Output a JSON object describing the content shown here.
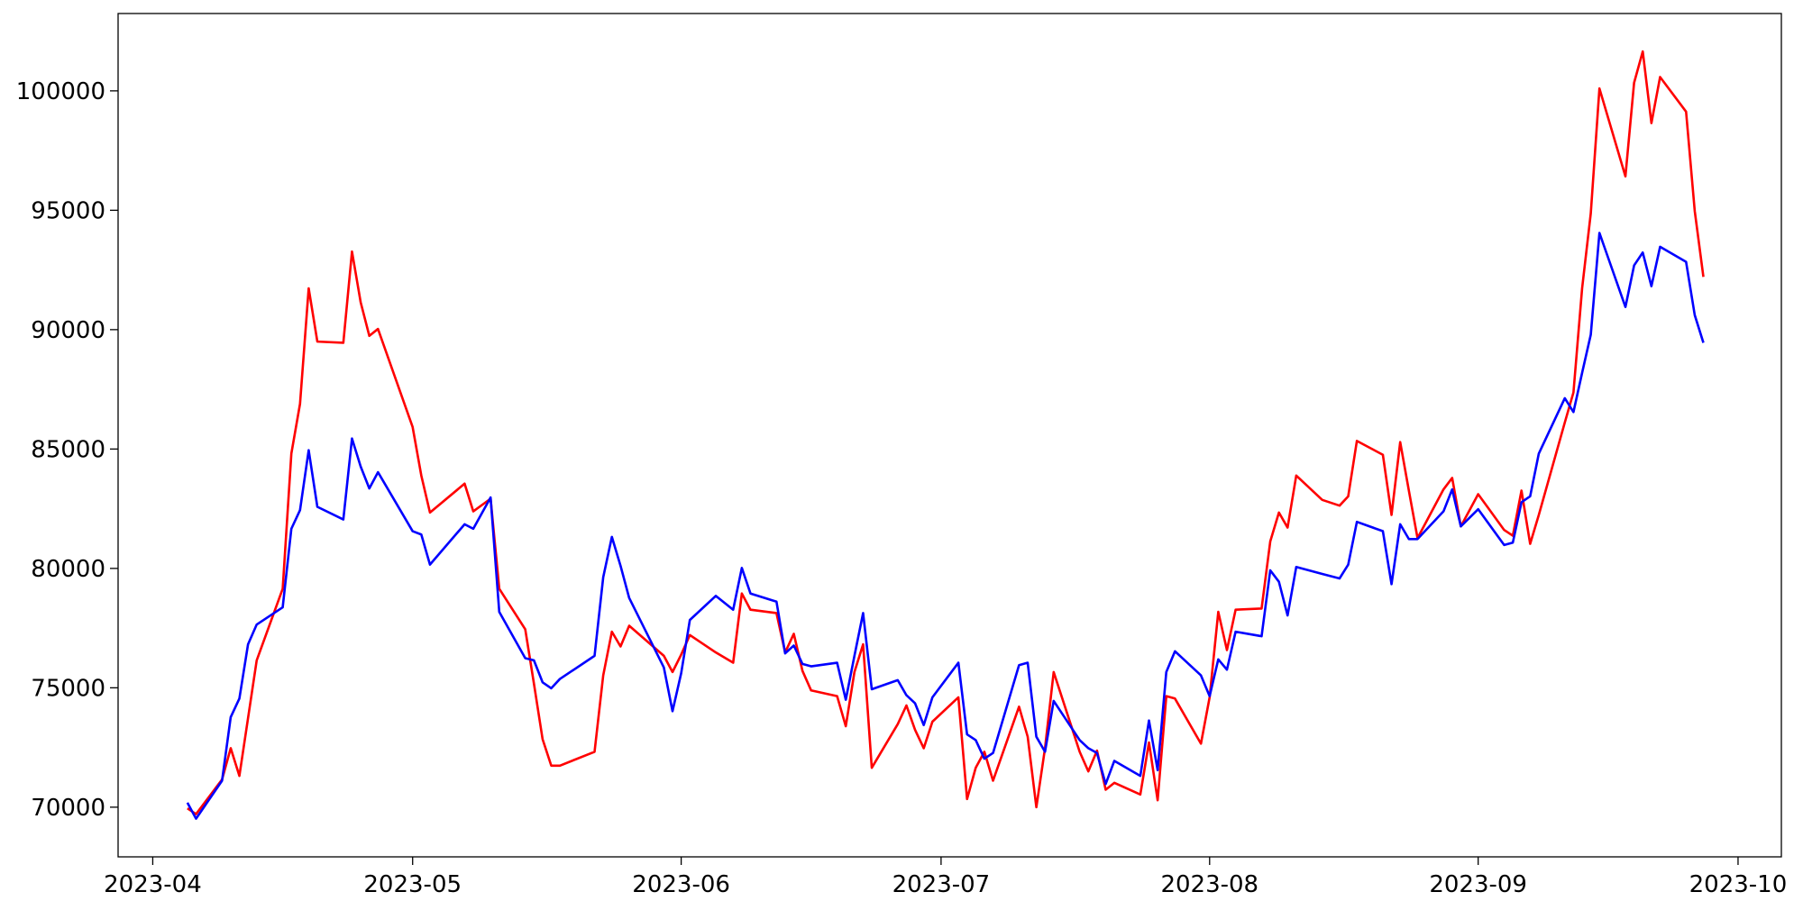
{
  "chart_data": {
    "type": "line",
    "x": [
      "2023-04-05",
      "2023-04-06",
      "2023-04-09",
      "2023-04-10",
      "2023-04-11",
      "2023-04-12",
      "2023-04-13",
      "2023-04-16",
      "2023-04-17",
      "2023-04-18",
      "2023-04-19",
      "2023-04-20",
      "2023-04-23",
      "2023-04-24",
      "2023-04-25",
      "2023-04-26",
      "2023-04-27",
      "2023-05-01",
      "2023-05-02",
      "2023-05-03",
      "2023-05-07",
      "2023-05-08",
      "2023-05-10",
      "2023-05-11",
      "2023-05-14",
      "2023-05-15",
      "2023-05-16",
      "2023-05-17",
      "2023-05-18",
      "2023-05-22",
      "2023-05-23",
      "2023-05-24",
      "2023-05-25",
      "2023-05-26",
      "2023-05-30",
      "2023-05-31",
      "2023-06-01",
      "2023-06-02",
      "2023-06-05",
      "2023-06-07",
      "2023-06-08",
      "2023-06-09",
      "2023-06-12",
      "2023-06-13",
      "2023-06-14",
      "2023-06-15",
      "2023-06-16",
      "2023-06-19",
      "2023-06-20",
      "2023-06-21",
      "2023-06-22",
      "2023-06-23",
      "2023-06-26",
      "2023-06-27",
      "2023-06-28",
      "2023-06-29",
      "2023-06-30",
      "2023-07-03",
      "2023-07-04",
      "2023-07-05",
      "2023-07-06",
      "2023-07-07",
      "2023-07-10",
      "2023-07-11",
      "2023-07-12",
      "2023-07-13",
      "2023-07-14",
      "2023-07-17",
      "2023-07-18",
      "2023-07-19",
      "2023-07-20",
      "2023-07-21",
      "2023-07-24",
      "2023-07-25",
      "2023-07-26",
      "2023-07-27",
      "2023-07-28",
      "2023-07-31",
      "2023-08-01",
      "2023-08-02",
      "2023-08-03",
      "2023-08-04",
      "2023-08-07",
      "2023-08-08",
      "2023-08-09",
      "2023-08-10",
      "2023-08-11",
      "2023-08-14",
      "2023-08-16",
      "2023-08-17",
      "2023-08-18",
      "2023-08-21",
      "2023-08-22",
      "2023-08-23",
      "2023-08-24",
      "2023-08-25",
      "2023-08-28",
      "2023-08-29",
      "2023-08-30",
      "2023-09-01",
      "2023-09-04",
      "2023-09-05",
      "2023-09-06",
      "2023-09-07",
      "2023-09-08",
      "2023-09-11",
      "2023-09-12",
      "2023-09-13",
      "2023-09-14",
      "2023-09-15",
      "2023-09-18",
      "2023-09-19",
      "2023-09-20",
      "2023-09-21",
      "2023-09-22",
      "2023-09-25",
      "2023-09-26",
      "2023-09-27"
    ],
    "series": [
      {
        "color": "#ff0000",
        "values": [
          69950,
          69710,
          71160,
          72470,
          71310,
          73730,
          76150,
          79150,
          84810,
          86890,
          91730,
          89500,
          89450,
          93270,
          91150,
          89740,
          90030,
          85920,
          83890,
          82340,
          83550,
          82390,
          82920,
          79150,
          77450,
          75180,
          72850,
          71740,
          71740,
          72320,
          75520,
          77350,
          76730,
          77600,
          76340,
          75660,
          76390,
          77210,
          76480,
          76050,
          78950,
          78270,
          78130,
          76480,
          77260,
          75710,
          74890,
          74650,
          73390,
          75660,
          76820,
          71650,
          73480,
          74260,
          73240,
          72470,
          73580,
          74600,
          70340,
          71650,
          72320,
          71110,
          74210,
          72950,
          70000,
          72470,
          75660,
          72320,
          71500,
          72370,
          70730,
          71020,
          70530,
          72710,
          70290,
          74650,
          74550,
          72660,
          74600,
          78180,
          76580,
          78270,
          78320,
          81130,
          82340,
          81710,
          83890,
          82870,
          82630,
          83020,
          85340,
          84760,
          82240,
          85290,
          83260,
          81270,
          83310,
          83790,
          81760,
          83110,
          81610,
          81370,
          83260,
          81030,
          82240,
          86110,
          87370,
          91730,
          94870,
          100100,
          96420,
          100340,
          101650,
          98650,
          100580,
          99130,
          94970,
          92210
        ]
      },
      {
        "color": "#0000ff",
        "values": [
          70190,
          69520,
          71110,
          73770,
          74550,
          76820,
          77650,
          78370,
          81660,
          82440,
          84950,
          82580,
          82050,
          85440,
          84270,
          83350,
          84030,
          81560,
          81420,
          80160,
          81850,
          81660,
          82970,
          78180,
          76240,
          76150,
          75230,
          74980,
          75370,
          76340,
          79630,
          81320,
          80110,
          78760,
          75850,
          74020,
          75610,
          77840,
          78850,
          78270,
          80020,
          78950,
          78610,
          76440,
          76770,
          76000,
          75900,
          76050,
          74500,
          76340,
          78130,
          74940,
          75320,
          74690,
          74350,
          73440,
          74600,
          76050,
          73050,
          72810,
          72030,
          72270,
          75950,
          76050,
          72950,
          72320,
          74450,
          72810,
          72470,
          72270,
          70970,
          71940,
          71310,
          73630,
          71550,
          75660,
          76530,
          75520,
          74650,
          76190,
          75760,
          77350,
          77160,
          79920,
          79440,
          78030,
          80060,
          79770,
          79580,
          80160,
          81950,
          81560,
          79340,
          81850,
          81230,
          81230,
          82390,
          83310,
          81760,
          82480,
          80980,
          81080,
          82770,
          83020,
          84810,
          87130,
          86550,
          88190,
          89790,
          94050,
          90950,
          92690,
          93230,
          91820,
          93470,
          92840,
          90610,
          89450
        ]
      }
    ],
    "xlim": [
      "2023-03-28",
      "2023-10-06"
    ],
    "xticks": [
      {
        "value": "2023-04-01",
        "label": "2023-04"
      },
      {
        "value": "2023-05-01",
        "label": "2023-05"
      },
      {
        "value": "2023-06-01",
        "label": "2023-06"
      },
      {
        "value": "2023-07-01",
        "label": "2023-07"
      },
      {
        "value": "2023-08-01",
        "label": "2023-08"
      },
      {
        "value": "2023-09-01",
        "label": "2023-09"
      },
      {
        "value": "2023-10-01",
        "label": "2023-10"
      }
    ],
    "ylim": [
      67920,
      103240
    ],
    "yticks": [
      70000,
      75000,
      80000,
      85000,
      90000,
      95000,
      100000
    ],
    "grid": false
  }
}
